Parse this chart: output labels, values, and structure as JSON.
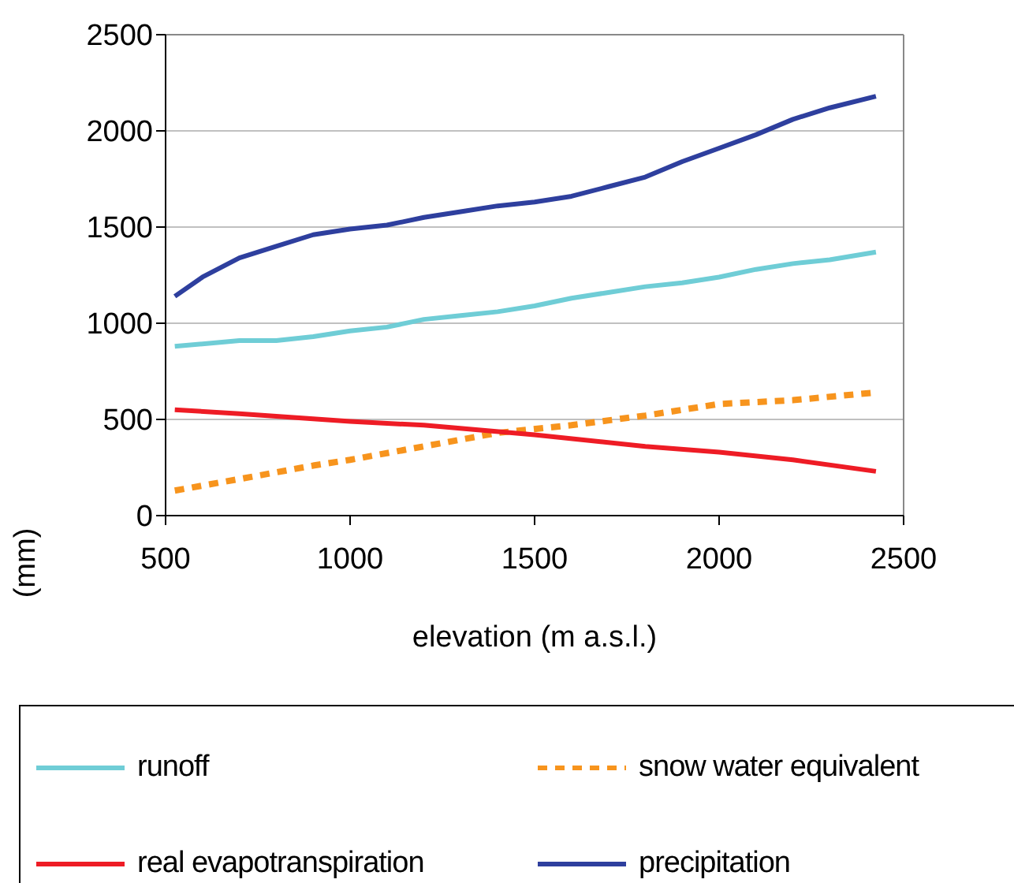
{
  "chart_data": {
    "type": "line",
    "xlabel": "elevation (m a.s.l.)",
    "ylabel": "(mm)",
    "xlim": [
      500,
      2500
    ],
    "xticks": [
      500,
      1000,
      1500,
      2000,
      2500
    ],
    "ylim": [
      0,
      2500
    ],
    "yticks": [
      0,
      500,
      1000,
      1500,
      2000,
      2500
    ],
    "grid": "y",
    "legend": "bottom",
    "marker": "none",
    "series": [
      {
        "name": "runoff",
        "color": "#6fcdd6",
        "x": [
          525,
          700,
          800,
          900,
          1000,
          1100,
          1200,
          1300,
          1400,
          1500,
          1600,
          1700,
          1800,
          1900,
          2000,
          2100,
          2200,
          2300,
          2425
        ],
        "values": [
          880,
          910,
          910,
          930,
          960,
          980,
          1020,
          1040,
          1060,
          1090,
          1130,
          1160,
          1190,
          1210,
          1240,
          1280,
          1310,
          1330,
          1370
        ]
      },
      {
        "name": "snow water equivalent",
        "color": "#f7941d",
        "line_style": "dashed",
        "x": [
          525,
          700,
          900,
          1000,
          1200,
          1400,
          1600,
          1800,
          2000,
          2200,
          2425
        ],
        "values": [
          130,
          190,
          260,
          290,
          360,
          430,
          470,
          520,
          580,
          600,
          640
        ]
      },
      {
        "name": "real evapotranspiration",
        "color": "#ee1c25",
        "x": [
          525,
          700,
          1000,
          1200,
          1500,
          1800,
          2000,
          2200,
          2425
        ],
        "values": [
          550,
          530,
          490,
          470,
          420,
          360,
          330,
          290,
          230
        ]
      },
      {
        "name": "precipitation",
        "color": "#2e3f9e",
        "x": [
          525,
          600,
          700,
          800,
          900,
          1000,
          1100,
          1200,
          1300,
          1400,
          1500,
          1600,
          1700,
          1800,
          1900,
          2000,
          2100,
          2200,
          2300,
          2425
        ],
        "values": [
          1140,
          1240,
          1340,
          1400,
          1460,
          1490,
          1510,
          1550,
          1580,
          1610,
          1630,
          1660,
          1710,
          1760,
          1840,
          1910,
          1980,
          2060,
          2120,
          2180
        ]
      }
    ]
  }
}
